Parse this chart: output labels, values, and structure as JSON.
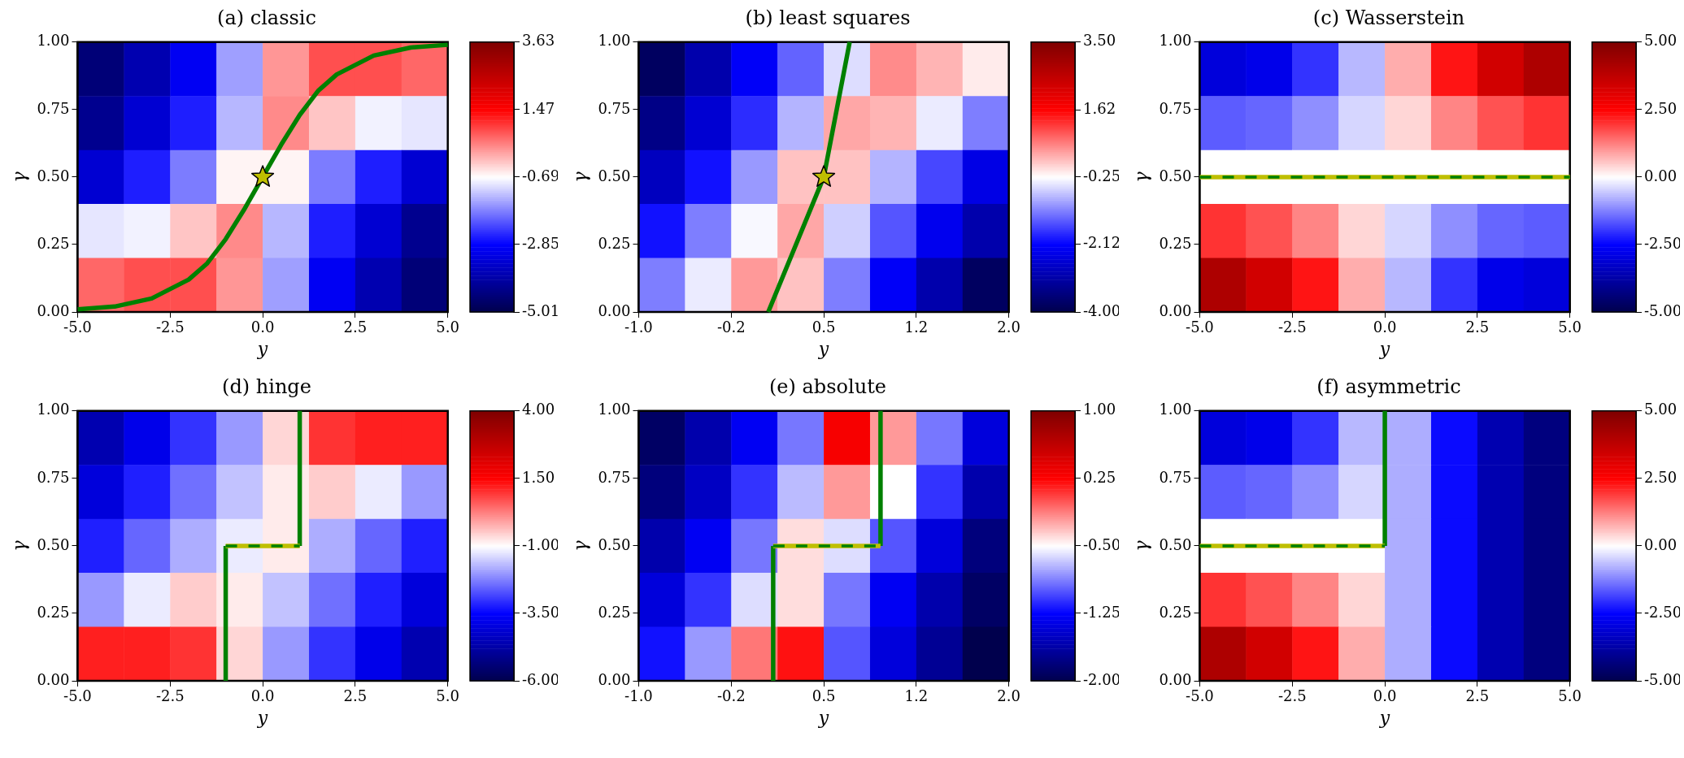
{
  "chart_data": [
    {
      "type": "heatmap",
      "title": "(a) classic",
      "xlabel": "y",
      "ylabel": "γ",
      "xlim": [
        -5,
        5
      ],
      "ylim": [
        0,
        1
      ],
      "xticks": [
        {
          "value": -5,
          "label": "-5.0"
        },
        {
          "value": -2.5,
          "label": "-2.5"
        },
        {
          "value": 0,
          "label": "0.0"
        },
        {
          "value": 2.5,
          "label": "2.5"
        },
        {
          "value": 5,
          "label": "5.0"
        }
      ],
      "yticks": [
        {
          "value": 0,
          "label": "0.00"
        },
        {
          "value": 0.25,
          "label": "0.25"
        },
        {
          "value": 0.5,
          "label": "0.50"
        },
        {
          "value": 0.75,
          "label": "0.75"
        },
        {
          "value": 1,
          "label": "1.00"
        }
      ],
      "clim": [
        -5.01,
        3.63
      ],
      "cticks": [
        -5.01,
        -2.85,
        -0.69,
        1.47,
        3.63
      ],
      "cells": [
        [
          -4.5,
          -3.8,
          -3.0,
          -1.5,
          0.2,
          0.8,
          0.8,
          0.6
        ],
        [
          -4.2,
          -3.4,
          -2.6,
          -1.3,
          0.3,
          -0.2,
          -0.8,
          -0.9
        ],
        [
          -3.4,
          -2.6,
          -1.8,
          -0.6,
          -0.6,
          -1.8,
          -2.6,
          -3.4
        ],
        [
          -0.9,
          -0.8,
          -0.2,
          0.3,
          -1.3,
          -2.6,
          -3.4,
          -4.2
        ],
        [
          0.6,
          0.8,
          0.8,
          0.2,
          -1.5,
          -3.0,
          -3.8,
          -4.5
        ]
      ],
      "series": [
        {
          "type": "line",
          "color": "#008000",
          "line_style": "solid",
          "x": [
            -5,
            -4,
            -3,
            -2,
            -1.5,
            -1,
            -0.5,
            0,
            0.5,
            1,
            1.5,
            2,
            3,
            4,
            5
          ],
          "values": [
            0.01,
            0.02,
            0.05,
            0.12,
            0.18,
            0.27,
            0.38,
            0.5,
            0.62,
            0.73,
            0.82,
            0.88,
            0.95,
            0.98,
            0.99
          ]
        },
        {
          "type": "scatter",
          "color": "#bfbf00",
          "marker": "star",
          "x": [
            0
          ],
          "values": [
            0.5
          ]
        }
      ]
    },
    {
      "type": "heatmap",
      "title": "(b) least squares",
      "xlabel": "y",
      "ylabel": "γ",
      "xlim": [
        -1,
        2
      ],
      "ylim": [
        0,
        1
      ],
      "xticks": [
        {
          "value": -1,
          "label": "-1.0"
        },
        {
          "value": -0.25,
          "label": "-0.2"
        },
        {
          "value": 0.5,
          "label": "0.5"
        },
        {
          "value": 1.25,
          "label": "1.2"
        },
        {
          "value": 2,
          "label": "2.0"
        }
      ],
      "yticks": [
        {
          "value": 0,
          "label": "0.00"
        },
        {
          "value": 0.25,
          "label": "0.25"
        },
        {
          "value": 0.5,
          "label": "0.50"
        },
        {
          "value": 0.75,
          "label": "0.75"
        },
        {
          "value": 1,
          "label": "1.00"
        }
      ],
      "clim": [
        -4,
        3.5
      ],
      "cticks": [
        {
          "value": -4,
          "label": "-4.00"
        },
        -2.12,
        -0.25,
        1.62,
        {
          "value": 3.5,
          "label": "3.50"
        }
      ],
      "cells": [
        [
          -3.8,
          -3.0,
          -2.2,
          -1.4,
          -0.5,
          0.6,
          0.3,
          -0.1
        ],
        [
          -3.4,
          -2.6,
          -1.8,
          -0.8,
          0.4,
          0.3,
          -0.4,
          -1.2
        ],
        [
          -2.8,
          -2.0,
          -1.0,
          0.2,
          0.2,
          -0.8,
          -1.6,
          -2.4
        ],
        [
          -2.0,
          -1.2,
          -0.3,
          0.4,
          -0.6,
          -1.5,
          -2.3,
          -3.0
        ],
        [
          -1.2,
          -0.4,
          0.5,
          0.2,
          -1.2,
          -2.2,
          -3.0,
          -3.8
        ]
      ],
      "series": [
        {
          "type": "line",
          "color": "#008000",
          "line_style": "solid",
          "x": [
            0.05,
            0.5,
            0.71
          ],
          "values": [
            0,
            0.5,
            1
          ]
        },
        {
          "type": "scatter",
          "color": "#bfbf00",
          "marker": "star",
          "x": [
            0.5
          ],
          "values": [
            0.5
          ]
        }
      ]
    },
    {
      "type": "heatmap",
      "title": "(c) Wasserstein",
      "xlabel": "y",
      "ylabel": "γ",
      "xlim": [
        -5,
        5
      ],
      "ylim": [
        0,
        1
      ],
      "xticks": [
        {
          "value": -5,
          "label": "-5.0"
        },
        {
          "value": -2.5,
          "label": "-2.5"
        },
        {
          "value": 0,
          "label": "0.0"
        },
        {
          "value": 2.5,
          "label": "2.5"
        },
        {
          "value": 5,
          "label": "5.0"
        }
      ],
      "yticks": [
        {
          "value": 0,
          "label": "0.00"
        },
        {
          "value": 0.25,
          "label": "0.25"
        },
        {
          "value": 0.5,
          "label": "0.50"
        },
        {
          "value": 0.75,
          "label": "0.75"
        },
        {
          "value": 1,
          "label": "1.00"
        }
      ],
      "clim": [
        -5,
        5
      ],
      "cticks": [
        {
          "value": -5,
          "label": "-5.00"
        },
        {
          "value": -2.5,
          "label": "-2.50"
        },
        {
          "value": 0,
          "label": "0.00"
        },
        {
          "value": 2.5,
          "label": "2.50"
        },
        {
          "value": 5,
          "label": "5.00"
        }
      ],
      "cells": [
        [
          -3.0,
          -2.8,
          -2.0,
          -0.7,
          0.8,
          2.3,
          3.4,
          4.1
        ],
        [
          -1.6,
          -1.5,
          -1.1,
          -0.4,
          0.4,
          1.2,
          1.7,
          2.0
        ],
        [
          0,
          0,
          0,
          0,
          0,
          0,
          0,
          0
        ],
        [
          2.0,
          1.7,
          1.2,
          0.4,
          -0.4,
          -1.1,
          -1.5,
          -1.6
        ],
        [
          4.1,
          3.4,
          2.3,
          0.8,
          -0.7,
          -2.0,
          -2.8,
          -3.0
        ]
      ],
      "series": [
        {
          "type": "line",
          "color": "#bfbf00",
          "line_style": "solid",
          "x": [
            -5,
            5
          ],
          "values": [
            0.5,
            0.5
          ]
        },
        {
          "type": "line",
          "color": "#008000",
          "line_style": "dashed",
          "x": [
            -5,
            5
          ],
          "values": [
            0.5,
            0.5
          ]
        }
      ]
    },
    {
      "type": "heatmap",
      "title": "(d) hinge",
      "xlabel": "y",
      "ylabel": "γ",
      "xlim": [
        -5,
        5
      ],
      "ylim": [
        0,
        1
      ],
      "xticks": [
        {
          "value": -5,
          "label": "-5.0"
        },
        {
          "value": -2.5,
          "label": "-2.5"
        },
        {
          "value": 0,
          "label": "0.0"
        },
        {
          "value": 2.5,
          "label": "2.5"
        },
        {
          "value": 5,
          "label": "5.0"
        }
      ],
      "yticks": [
        {
          "value": 0,
          "label": "0.00"
        },
        {
          "value": 0.25,
          "label": "0.25"
        },
        {
          "value": 0.5,
          "label": "0.50"
        },
        {
          "value": 0.75,
          "label": "0.75"
        },
        {
          "value": 1,
          "label": "1.00"
        }
      ],
      "clim": [
        -6,
        4
      ],
      "cticks": [
        {
          "value": -6,
          "label": "-6.00"
        },
        {
          "value": -3.5,
          "label": "-3.50"
        },
        {
          "value": -1,
          "label": "-1.00"
        },
        {
          "value": 1.5,
          "label": "1.50"
        },
        {
          "value": 4,
          "label": "4.00"
        }
      ],
      "cells": [
        [
          -4.6,
          -3.8,
          -3.0,
          -2.0,
          -0.6,
          1.0,
          1.2,
          1.2
        ],
        [
          -4.0,
          -3.2,
          -2.4,
          -1.6,
          -0.8,
          -0.5,
          -1.2,
          -2.0
        ],
        [
          -3.2,
          -2.5,
          -1.8,
          -1.2,
          -0.8,
          -1.8,
          -2.5,
          -3.2
        ],
        [
          -2.0,
          -1.2,
          -0.5,
          -0.8,
          -1.6,
          -2.4,
          -3.2,
          -4.0
        ],
        [
          1.2,
          1.2,
          1.0,
          -0.6,
          -2.0,
          -3.0,
          -3.8,
          -4.6
        ]
      ],
      "series": [
        {
          "type": "line",
          "color": "#008000",
          "line_style": "solid",
          "x": [
            -1,
            -1
          ],
          "values": [
            0,
            0.5
          ]
        },
        {
          "type": "line",
          "color": "#008000",
          "line_style": "solid",
          "x": [
            1,
            1
          ],
          "values": [
            0.5,
            1
          ]
        },
        {
          "type": "line",
          "color": "#bfbf00",
          "line_style": "solid",
          "x": [
            -1,
            1
          ],
          "values": [
            0.5,
            0.5
          ]
        },
        {
          "type": "line",
          "color": "#008000",
          "line_style": "dashed",
          "x": [
            -1,
            1
          ],
          "values": [
            0.5,
            0.5
          ]
        }
      ]
    },
    {
      "type": "heatmap",
      "title": "(e) absolute",
      "xlabel": "y",
      "ylabel": "γ",
      "xlim": [
        -1,
        2
      ],
      "ylim": [
        0,
        1
      ],
      "xticks": [
        {
          "value": -1,
          "label": "-1.0"
        },
        {
          "value": -0.25,
          "label": "-0.2"
        },
        {
          "value": 0.5,
          "label": "0.5"
        },
        {
          "value": 1.25,
          "label": "1.2"
        },
        {
          "value": 2,
          "label": "2.0"
        }
      ],
      "yticks": [
        {
          "value": 0,
          "label": "0.00"
        },
        {
          "value": 0.25,
          "label": "0.25"
        },
        {
          "value": 0.5,
          "label": "0.50"
        },
        {
          "value": 0.75,
          "label": "0.75"
        },
        {
          "value": 1,
          "label": "1.00"
        }
      ],
      "clim": [
        -2,
        1
      ],
      "cticks": [
        {
          "value": -2,
          "label": "-2.00"
        },
        -1.25,
        {
          "value": -0.5,
          "label": "-0.50"
        },
        0.25,
        {
          "value": 1,
          "label": "1.00"
        }
      ],
      "cells": [
        [
          -1.9,
          -1.6,
          -1.3,
          -0.9,
          0.3,
          -0.2,
          -0.9,
          -1.4
        ],
        [
          -1.8,
          -1.5,
          -1.1,
          -0.7,
          -0.2,
          -0.5,
          -1.1,
          -1.6
        ],
        [
          -1.6,
          -1.3,
          -0.9,
          -0.4,
          -0.6,
          -1.0,
          -1.4,
          -1.8
        ],
        [
          -1.4,
          -1.1,
          -0.6,
          -0.4,
          -0.9,
          -1.3,
          -1.6,
          -1.9
        ],
        [
          -1.2,
          -0.8,
          -0.1,
          0.2,
          -1.0,
          -1.4,
          -1.7,
          -2.0
        ]
      ],
      "series": [
        {
          "type": "line",
          "color": "#008000",
          "line_style": "solid",
          "x": [
            0.09,
            0.09
          ],
          "values": [
            0,
            0.5
          ]
        },
        {
          "type": "line",
          "color": "#008000",
          "line_style": "solid",
          "x": [
            0.96,
            0.96
          ],
          "values": [
            0.5,
            1
          ]
        },
        {
          "type": "line",
          "color": "#bfbf00",
          "line_style": "solid",
          "x": [
            0.09,
            0.96
          ],
          "values": [
            0.5,
            0.5
          ]
        },
        {
          "type": "line",
          "color": "#008000",
          "line_style": "dashed",
          "x": [
            0.09,
            0.96
          ],
          "values": [
            0.5,
            0.5
          ]
        }
      ]
    },
    {
      "type": "heatmap",
      "title": "(f) asymmetric",
      "xlabel": "y",
      "ylabel": "γ",
      "xlim": [
        -5,
        5
      ],
      "ylim": [
        0,
        1
      ],
      "xticks": [
        {
          "value": -5,
          "label": "-5.0"
        },
        {
          "value": -2.5,
          "label": "-2.5"
        },
        {
          "value": 0,
          "label": "0.0"
        },
        {
          "value": 2.5,
          "label": "2.5"
        },
        {
          "value": 5,
          "label": "5.0"
        }
      ],
      "yticks": [
        {
          "value": 0,
          "label": "0.00"
        },
        {
          "value": 0.25,
          "label": "0.25"
        },
        {
          "value": 0.5,
          "label": "0.50"
        },
        {
          "value": 0.75,
          "label": "0.75"
        },
        {
          "value": 1,
          "label": "1.00"
        }
      ],
      "clim": [
        -5,
        5
      ],
      "cticks": [
        {
          "value": -5,
          "label": "-5.00"
        },
        {
          "value": -2.5,
          "label": "-2.50"
        },
        {
          "value": 0,
          "label": "0.00"
        },
        {
          "value": 2.5,
          "label": "2.50"
        },
        {
          "value": 5,
          "label": "5.00"
        }
      ],
      "cells": [
        [
          -3.0,
          -2.8,
          -2.0,
          -0.7,
          -0.8,
          -2.4,
          -3.6,
          -4.3
        ],
        [
          -1.6,
          -1.5,
          -1.1,
          -0.4,
          -0.8,
          -2.4,
          -3.6,
          -4.3
        ],
        [
          0,
          0,
          0,
          0,
          -0.8,
          -2.4,
          -3.6,
          -4.3
        ],
        [
          2.0,
          1.7,
          1.2,
          0.4,
          -0.8,
          -2.4,
          -3.6,
          -4.3
        ],
        [
          4.1,
          3.4,
          2.3,
          0.8,
          -0.8,
          -2.4,
          -3.6,
          -4.3
        ]
      ],
      "series": [
        {
          "type": "line",
          "color": "#008000",
          "line_style": "solid",
          "x": [
            0,
            0
          ],
          "values": [
            0.5,
            1
          ]
        },
        {
          "type": "line",
          "color": "#bfbf00",
          "line_style": "solid",
          "x": [
            -5,
            0
          ],
          "values": [
            0.5,
            0.5
          ]
        },
        {
          "type": "line",
          "color": "#008000",
          "line_style": "dashed",
          "x": [
            -5,
            0
          ],
          "values": [
            0.5,
            0.5
          ]
        }
      ]
    }
  ]
}
